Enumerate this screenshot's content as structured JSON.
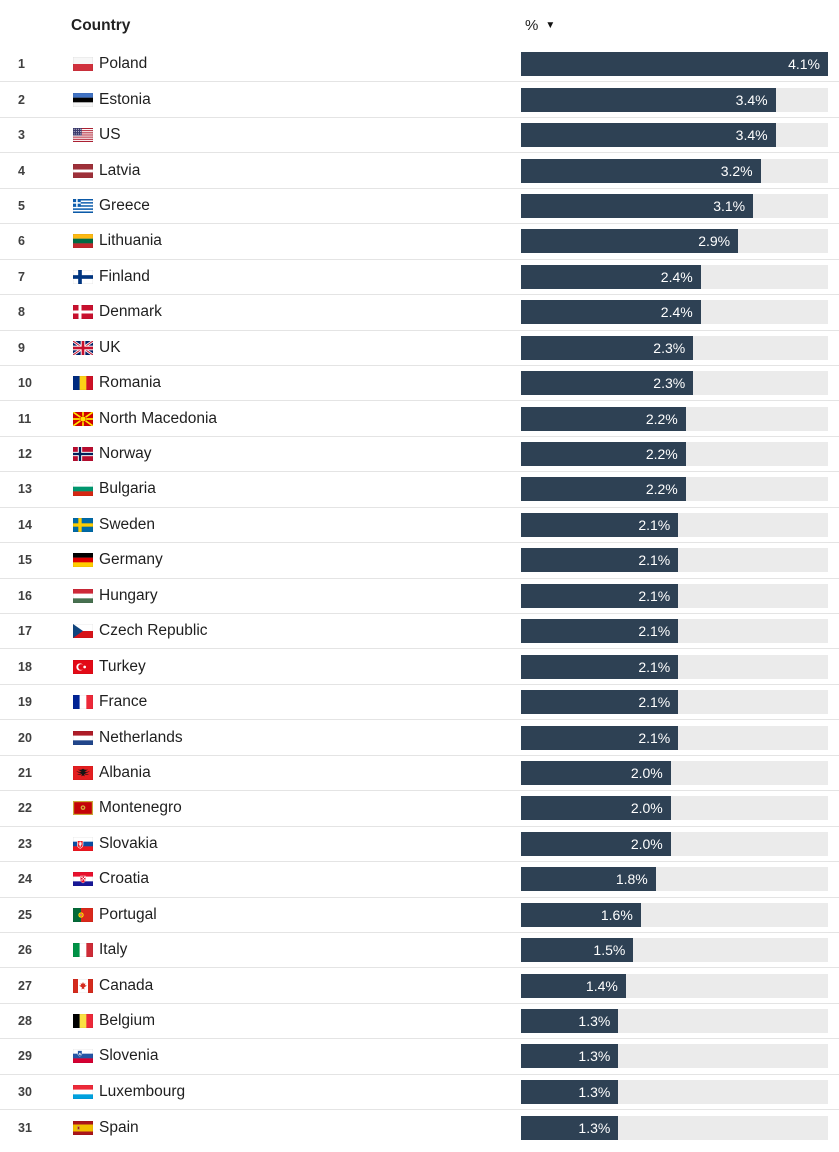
{
  "header": {
    "country_label": "Country",
    "value_label": "%",
    "sort_icon": "▼",
    "sort_order": "descending"
  },
  "colors": {
    "bar": "#2e4154",
    "track": "#ebebeb",
    "divider": "#e4e4e4",
    "text": "#1f1f1f",
    "rank_text": "#404040",
    "bar_label": "#ffffff"
  },
  "rows": [
    {
      "rank": "1",
      "country": "Poland",
      "flag": "pl",
      "value": 4.1,
      "label": "4.1%"
    },
    {
      "rank": "2",
      "country": "Estonia",
      "flag": "ee",
      "value": 3.4,
      "label": "3.4%"
    },
    {
      "rank": "3",
      "country": "US",
      "flag": "us",
      "value": 3.4,
      "label": "3.4%"
    },
    {
      "rank": "4",
      "country": "Latvia",
      "flag": "lv",
      "value": 3.2,
      "label": "3.2%"
    },
    {
      "rank": "5",
      "country": "Greece",
      "flag": "gr",
      "value": 3.1,
      "label": "3.1%"
    },
    {
      "rank": "6",
      "country": "Lithuania",
      "flag": "lt",
      "value": 2.9,
      "label": "2.9%"
    },
    {
      "rank": "7",
      "country": "Finland",
      "flag": "fi",
      "value": 2.4,
      "label": "2.4%"
    },
    {
      "rank": "8",
      "country": "Denmark",
      "flag": "dk",
      "value": 2.4,
      "label": "2.4%"
    },
    {
      "rank": "9",
      "country": "UK",
      "flag": "uk",
      "value": 2.3,
      "label": "2.3%"
    },
    {
      "rank": "10",
      "country": "Romania",
      "flag": "ro",
      "value": 2.3,
      "label": "2.3%"
    },
    {
      "rank": "11",
      "country": "North Macedonia",
      "flag": "mk",
      "value": 2.2,
      "label": "2.2%"
    },
    {
      "rank": "12",
      "country": "Norway",
      "flag": "no",
      "value": 2.2,
      "label": "2.2%"
    },
    {
      "rank": "13",
      "country": "Bulgaria",
      "flag": "bg",
      "value": 2.2,
      "label": "2.2%"
    },
    {
      "rank": "14",
      "country": "Sweden",
      "flag": "se",
      "value": 2.1,
      "label": "2.1%"
    },
    {
      "rank": "15",
      "country": "Germany",
      "flag": "de",
      "value": 2.1,
      "label": "2.1%"
    },
    {
      "rank": "16",
      "country": "Hungary",
      "flag": "hu",
      "value": 2.1,
      "label": "2.1%"
    },
    {
      "rank": "17",
      "country": "Czech Republic",
      "flag": "cz",
      "value": 2.1,
      "label": "2.1%"
    },
    {
      "rank": "18",
      "country": "Turkey",
      "flag": "tr",
      "value": 2.1,
      "label": "2.1%"
    },
    {
      "rank": "19",
      "country": "France",
      "flag": "fr",
      "value": 2.1,
      "label": "2.1%"
    },
    {
      "rank": "20",
      "country": "Netherlands",
      "flag": "nl",
      "value": 2.1,
      "label": "2.1%"
    },
    {
      "rank": "21",
      "country": "Albania",
      "flag": "al",
      "value": 2.0,
      "label": "2.0%"
    },
    {
      "rank": "22",
      "country": "Montenegro",
      "flag": "me",
      "value": 2.0,
      "label": "2.0%"
    },
    {
      "rank": "23",
      "country": "Slovakia",
      "flag": "sk",
      "value": 2.0,
      "label": "2.0%"
    },
    {
      "rank": "24",
      "country": "Croatia",
      "flag": "hr",
      "value": 1.8,
      "label": "1.8%"
    },
    {
      "rank": "25",
      "country": "Portugal",
      "flag": "pt",
      "value": 1.6,
      "label": "1.6%"
    },
    {
      "rank": "26",
      "country": "Italy",
      "flag": "it",
      "value": 1.5,
      "label": "1.5%"
    },
    {
      "rank": "27",
      "country": "Canada",
      "flag": "ca",
      "value": 1.4,
      "label": "1.4%"
    },
    {
      "rank": "28",
      "country": "Belgium",
      "flag": "be",
      "value": 1.3,
      "label": "1.3%"
    },
    {
      "rank": "29",
      "country": "Slovenia",
      "flag": "si",
      "value": 1.3,
      "label": "1.3%"
    },
    {
      "rank": "30",
      "country": "Luxembourg",
      "flag": "lu",
      "value": 1.3,
      "label": "1.3%"
    },
    {
      "rank": "31",
      "country": "Spain",
      "flag": "es",
      "value": 1.3,
      "label": "1.3%"
    }
  ],
  "chart_data": {
    "type": "bar",
    "orientation": "horizontal",
    "title": "",
    "xlabel": "%",
    "ylabel": "Country",
    "xlim": [
      0,
      4.1
    ],
    "sort": "descending",
    "value_suffix": "%",
    "categories": [
      "Poland",
      "Estonia",
      "US",
      "Latvia",
      "Greece",
      "Lithuania",
      "Finland",
      "Denmark",
      "UK",
      "Romania",
      "North Macedonia",
      "Norway",
      "Bulgaria",
      "Sweden",
      "Germany",
      "Hungary",
      "Czech Republic",
      "Turkey",
      "France",
      "Netherlands",
      "Albania",
      "Montenegro",
      "Slovakia",
      "Croatia",
      "Portugal",
      "Italy",
      "Canada",
      "Belgium",
      "Slovenia",
      "Luxembourg",
      "Spain"
    ],
    "values": [
      4.1,
      3.4,
      3.4,
      3.2,
      3.1,
      2.9,
      2.4,
      2.4,
      2.3,
      2.3,
      2.2,
      2.2,
      2.2,
      2.1,
      2.1,
      2.1,
      2.1,
      2.1,
      2.1,
      2.1,
      2.0,
      2.0,
      2.0,
      1.8,
      1.6,
      1.5,
      1.4,
      1.3,
      1.3,
      1.3,
      1.3
    ]
  }
}
